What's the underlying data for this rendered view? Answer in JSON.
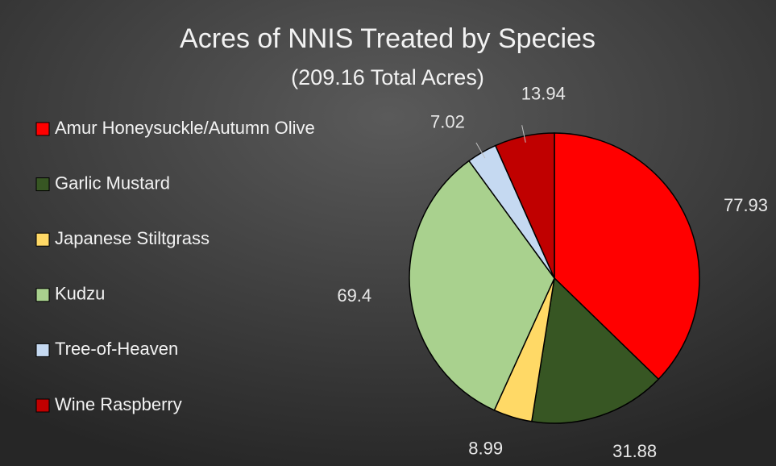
{
  "chart_data": {
    "type": "pie",
    "title": "Acres of NNIS Treated by Species",
    "subtitle": "(209.16 Total Acres)",
    "categories": [
      "Amur Honeysuckle/Autumn Olive",
      "Garlic Mustard",
      "Japanese Stiltgrass",
      "Kudzu",
      "Tree-of-Heaven",
      "Wine Raspberry"
    ],
    "values": [
      77.93,
      31.88,
      8.99,
      69.4,
      7.02,
      13.94
    ],
    "colors": [
      "#ff0000",
      "#375623",
      "#ffd966",
      "#a9d18e",
      "#c5d9f1",
      "#c00000"
    ],
    "legend": "left"
  }
}
